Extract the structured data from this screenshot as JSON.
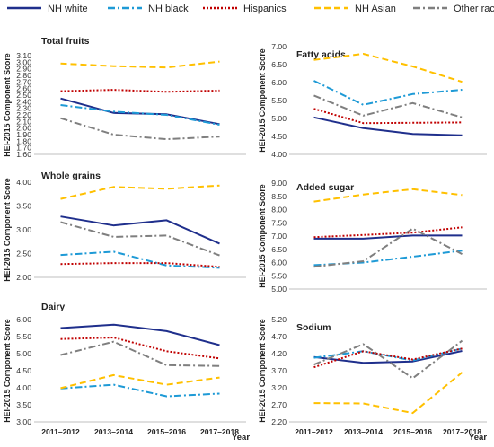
{
  "legend": [
    {
      "name": "NH white",
      "color": "#1f2f8c",
      "dash": "solid"
    },
    {
      "name": "NH black",
      "color": "#1e9ad6",
      "dash": "dashdot"
    },
    {
      "name": "Hispanics",
      "color": "#c00000",
      "dash": "dotted"
    },
    {
      "name": "NH Asian",
      "color": "#ffc000",
      "dash": "dashed"
    },
    {
      "name": "Other race",
      "color": "#7f7f7f",
      "dash": "dashdot"
    }
  ],
  "x_axis_label": "Year",
  "chart_data": [
    {
      "type": "line",
      "title": "Total fruits",
      "ylabel": "HEI-2015 Component Score",
      "categories": [
        "2011–2012",
        "2013–2014",
        "2015–2016",
        "2017–2018"
      ],
      "ylim": [
        1.6,
        3.1
      ],
      "yticks": [
        "1.60",
        "1.70",
        "1.80",
        "1.90",
        "2.00",
        "2.10",
        "2.20",
        "2.30",
        "2.40",
        "2.50",
        "2.60",
        "2.70",
        "2.80",
        "2.90",
        "3.00",
        "3.10"
      ],
      "series": [
        {
          "name": "NH white",
          "values": [
            2.45,
            2.23,
            2.21,
            2.06
          ]
        },
        {
          "name": "NH black",
          "values": [
            2.35,
            2.25,
            2.2,
            2.05
          ]
        },
        {
          "name": "Hispanics",
          "values": [
            2.56,
            2.58,
            2.55,
            2.57
          ]
        },
        {
          "name": "NH Asian",
          "values": [
            2.98,
            2.94,
            2.92,
            3.01
          ]
        },
        {
          "name": "Other race",
          "values": [
            2.15,
            1.9,
            1.83,
            1.87
          ]
        }
      ]
    },
    {
      "type": "line",
      "title": "Fatty acids",
      "ylabel": "HEI-2015 Component Score",
      "categories": [
        "2011–2012",
        "2013–2014",
        "2015–2016",
        "2017–2018"
      ],
      "ylim": [
        4.0,
        7.0
      ],
      "yticks": [
        "4.00",
        "4.50",
        "5.00",
        "5.50",
        "6.00",
        "6.50",
        "7.00"
      ],
      "series": [
        {
          "name": "NH white",
          "values": [
            5.03,
            4.73,
            4.57,
            4.53
          ]
        },
        {
          "name": "NH black",
          "values": [
            6.05,
            5.38,
            5.68,
            5.8
          ]
        },
        {
          "name": "Hispanics",
          "values": [
            5.27,
            4.87,
            4.88,
            4.89
          ]
        },
        {
          "name": "NH Asian",
          "values": [
            6.63,
            6.8,
            6.45,
            6.02
          ]
        },
        {
          "name": "Other race",
          "values": [
            5.64,
            5.08,
            5.43,
            5.03
          ]
        }
      ]
    },
    {
      "type": "line",
      "title": "Whole grains",
      "ylabel": "HEI-2015 Component Score",
      "categories": [
        "2011–2012",
        "2013–2014",
        "2015–2016",
        "2017–2018"
      ],
      "ylim": [
        2.0,
        4.0
      ],
      "yticks": [
        "2.00",
        "2.50",
        "3.00",
        "3.50",
        "4.00"
      ],
      "series": [
        {
          "name": "NH white",
          "values": [
            3.28,
            3.09,
            3.2,
            2.71
          ]
        },
        {
          "name": "NH black",
          "values": [
            2.47,
            2.54,
            2.25,
            2.2
          ]
        },
        {
          "name": "Hispanics",
          "values": [
            2.28,
            2.3,
            2.3,
            2.22
          ]
        },
        {
          "name": "NH Asian",
          "values": [
            3.65,
            3.9,
            3.86,
            3.93
          ]
        },
        {
          "name": "Other race",
          "values": [
            3.16,
            2.85,
            2.88,
            2.46
          ]
        }
      ]
    },
    {
      "type": "line",
      "title": "Added sugar",
      "ylabel": "HEI-2015 Component Score",
      "categories": [
        "2011–2012",
        "2013–2014",
        "2015–2016",
        "2017–2018"
      ],
      "ylim": [
        5.0,
        9.0
      ],
      "yticks": [
        "5.00",
        "5.50",
        "6.00",
        "6.50",
        "7.00",
        "7.50",
        "8.00",
        "8.50",
        "9.00"
      ],
      "series": [
        {
          "name": "NH white",
          "values": [
            6.9,
            6.9,
            7.02,
            7.02
          ]
        },
        {
          "name": "NH black",
          "values": [
            5.9,
            6.0,
            6.22,
            6.45
          ]
        },
        {
          "name": "Hispanics",
          "values": [
            6.96,
            7.04,
            7.13,
            7.33
          ]
        },
        {
          "name": "NH Asian",
          "values": [
            8.3,
            8.57,
            8.77,
            8.55
          ]
        },
        {
          "name": "Other race",
          "values": [
            5.84,
            6.05,
            7.28,
            6.32
          ]
        }
      ]
    },
    {
      "type": "line",
      "title": "Dairy",
      "ylabel": "HEI-2015 Component Score",
      "categories": [
        "2011–2012",
        "2013–2014",
        "2015–2016",
        "2017–2018"
      ],
      "ylim": [
        3.0,
        6.0
      ],
      "yticks": [
        "3.00",
        "3.50",
        "4.00",
        "4.50",
        "5.00",
        "5.50",
        "6.00"
      ],
      "series": [
        {
          "name": "NH white",
          "values": [
            5.75,
            5.85,
            5.66,
            5.25
          ]
        },
        {
          "name": "NH black",
          "values": [
            3.98,
            4.09,
            3.75,
            3.83
          ]
        },
        {
          "name": "Hispanics",
          "values": [
            5.43,
            5.47,
            5.07,
            4.86
          ]
        },
        {
          "name": "NH Asian",
          "values": [
            3.99,
            4.37,
            4.09,
            4.3
          ]
        },
        {
          "name": "Other race",
          "values": [
            4.96,
            5.35,
            4.66,
            4.64
          ]
        }
      ]
    },
    {
      "type": "line",
      "title": "Sodium",
      "ylabel": "HEI-2015 Component Score",
      "categories": [
        "2011–2012",
        "2013–2014",
        "2015–2016",
        "2017–2018"
      ],
      "ylim": [
        2.2,
        5.2
      ],
      "yticks": [
        "2.20",
        "2.70",
        "3.20",
        "3.70",
        "4.20",
        "4.70",
        "5.20"
      ],
      "series": [
        {
          "name": "NH white",
          "values": [
            4.1,
            3.93,
            3.97,
            4.28
          ]
        },
        {
          "name": "NH black",
          "values": [
            4.08,
            4.27,
            4.0,
            4.35
          ]
        },
        {
          "name": "Hispanics",
          "values": [
            3.8,
            4.27,
            4.03,
            4.35
          ]
        },
        {
          "name": "NH Asian",
          "values": [
            2.75,
            2.74,
            2.46,
            3.65
          ]
        },
        {
          "name": "Other race",
          "values": [
            3.88,
            4.48,
            3.48,
            4.58
          ]
        }
      ]
    }
  ]
}
